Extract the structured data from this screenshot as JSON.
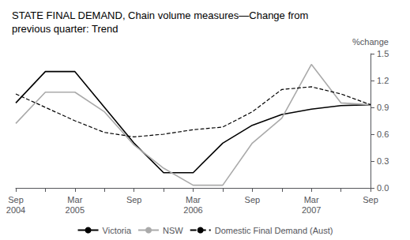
{
  "chart_data": {
    "type": "line",
    "title": "STATE FINAL DEMAND, Chain volume measures—Change from\nprevious quarter: Trend",
    "y_label": "%change",
    "categories": [
      "Sep\n2004",
      null,
      "Mar\n2005",
      null,
      "Sep",
      null,
      "Mar\n2006",
      null,
      "Sep",
      null,
      "Mar\n2007",
      null,
      "Sep"
    ],
    "series": [
      {
        "name": "Victoria",
        "color": "#000000",
        "line_style": "solid",
        "values": [
          0.95,
          1.3,
          1.3,
          0.9,
          0.5,
          0.17,
          0.17,
          0.5,
          0.7,
          0.82,
          0.88,
          0.92,
          0.93
        ]
      },
      {
        "name": "NSW",
        "color": "#aaaaaa",
        "line_style": "solid",
        "values": [
          0.72,
          1.07,
          1.07,
          0.85,
          0.48,
          0.22,
          0.03,
          0.03,
          0.5,
          0.78,
          1.38,
          0.95,
          0.93
        ]
      },
      {
        "name": "Domestic Final Demand (Aust)",
        "color": "#000000",
        "line_style": "dashed",
        "values": [
          1.05,
          0.9,
          0.75,
          0.62,
          0.57,
          0.6,
          0.65,
          0.68,
          0.85,
          1.1,
          1.13,
          1.05,
          0.93
        ]
      }
    ],
    "ylim": [
      0,
      1.5
    ],
    "yticks": [
      {
        "value": 0,
        "label": "0.0"
      },
      0.3,
      0.6,
      0.9,
      1.2,
      1.5
    ],
    "grid": false,
    "legend": "bottom"
  }
}
